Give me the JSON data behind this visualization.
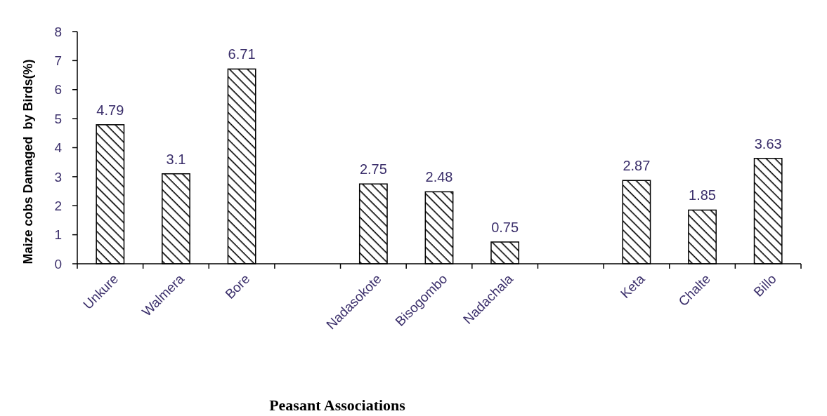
{
  "chart_data": {
    "type": "bar",
    "xlabel": "Peasant Associations",
    "ylabel": "Maize cobs Damaged  by Birds(%)",
    "categories": [
      "Unkure",
      "Walmera",
      "Bore",
      null,
      "Nadasokote",
      "Bisogombo",
      "Nadachala",
      null,
      "Keta",
      "Chalte",
      "Billo"
    ],
    "values": [
      4.79,
      3.1,
      6.71,
      null,
      2.75,
      2.48,
      0.75,
      null,
      2.87,
      1.85,
      3.63
    ],
    "value_labels": [
      "4.79",
      "3.1",
      "6.71",
      null,
      "2.75",
      "2.48",
      "0.75",
      null,
      "2.87",
      "1.85",
      "3.63"
    ],
    "color": "#000000",
    "ylim": [
      0,
      8
    ],
    "yticks": [
      0,
      1,
      2,
      3,
      4,
      5,
      6,
      7,
      8
    ],
    "grid": false
  }
}
